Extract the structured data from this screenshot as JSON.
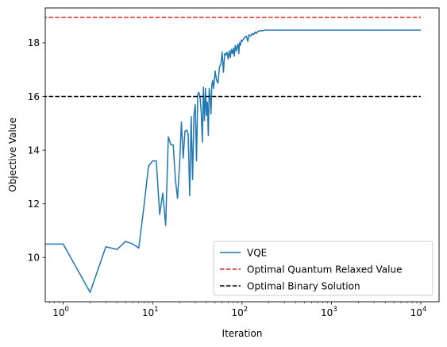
{
  "chart_data": {
    "type": "line",
    "title": "",
    "xlabel": "Iteration",
    "ylabel": "Objective Value",
    "xscale": "log",
    "xlim": [
      0.63,
      16000
    ],
    "ylim": [
      8.35,
      19.3
    ],
    "xticks": [
      {
        "value": 1,
        "base": "10",
        "exp": "0"
      },
      {
        "value": 10,
        "base": "10",
        "exp": "1"
      },
      {
        "value": 100,
        "base": "10",
        "exp": "2"
      },
      {
        "value": 1000,
        "base": "10",
        "exp": "3"
      },
      {
        "value": 10000,
        "base": "10",
        "exp": "4"
      }
    ],
    "yticks": [
      {
        "value": 10,
        "label": "10"
      },
      {
        "value": 12,
        "label": "12"
      },
      {
        "value": 14,
        "label": "14"
      },
      {
        "value": 16,
        "label": "16"
      },
      {
        "value": 18,
        "label": "18"
      }
    ],
    "grid": false,
    "legend_position": "lower-right",
    "series": [
      {
        "name": "VQE",
        "kind": "line",
        "color": "#1f77b4",
        "x": [
          0,
          1,
          2,
          3,
          4,
          5,
          6,
          7,
          8,
          9,
          10,
          11,
          12,
          13,
          14,
          15,
          16,
          17,
          18,
          19,
          20,
          21,
          22,
          23,
          24,
          25,
          26,
          27,
          28,
          29,
          30,
          31,
          32,
          33,
          34,
          35,
          36,
          37,
          38,
          39,
          40,
          41,
          42,
          43,
          44,
          45,
          46,
          47,
          48,
          49,
          50,
          52,
          54,
          56,
          58,
          60,
          62,
          64,
          66,
          68,
          70,
          72,
          74,
          76,
          78,
          80,
          82,
          84,
          86,
          88,
          90,
          92,
          94,
          96,
          98,
          100,
          104,
          108,
          112,
          116,
          120,
          125,
          130,
          135,
          140,
          145,
          150,
          160,
          170,
          180,
          200,
          250,
          300,
          500,
          1000,
          2000,
          5000,
          10000
        ],
        "y": [
          10.5,
          10.5,
          8.7,
          10.4,
          10.3,
          10.6,
          10.5,
          10.35,
          11.9,
          13.4,
          13.6,
          13.6,
          11.6,
          12.4,
          11.2,
          14.5,
          14.2,
          14.2,
          12.9,
          12.2,
          13.4,
          15.05,
          13.7,
          14.7,
          14.75,
          14.6,
          12.3,
          15.25,
          12.9,
          15.3,
          15.7,
          13.6,
          16.1,
          16.15,
          15.95,
          15.4,
          14.3,
          16.35,
          15.1,
          16.3,
          15.3,
          15.8,
          14.55,
          16.3,
          16.0,
          15.35,
          16.45,
          16.6,
          16.3,
          16.55,
          16.95,
          16.6,
          16.5,
          17.1,
          17.2,
          17.65,
          16.9,
          17.6,
          17.55,
          17.65,
          17.4,
          17.7,
          17.45,
          17.75,
          17.6,
          17.8,
          17.5,
          17.9,
          17.7,
          17.85,
          17.95,
          17.6,
          18.0,
          17.9,
          18.1,
          18.05,
          18.15,
          18.2,
          18.25,
          18.05,
          18.3,
          18.25,
          18.35,
          18.3,
          18.4,
          18.35,
          18.42,
          18.45,
          18.45,
          18.47,
          18.47,
          18.47,
          18.47,
          18.47,
          18.47,
          18.47,
          18.47,
          18.47
        ]
      },
      {
        "name": "Optimal Quantum Relaxed Value",
        "kind": "hline",
        "color": "#d62728",
        "dash": "dashed",
        "y": 18.95,
        "x_from": 0,
        "x_to": 10000
      },
      {
        "name": "Optimal Binary Solution",
        "kind": "hline",
        "color": "#000000",
        "dash": "dashed",
        "y": 16.0,
        "x_from": 0,
        "x_to": 10000
      }
    ]
  }
}
